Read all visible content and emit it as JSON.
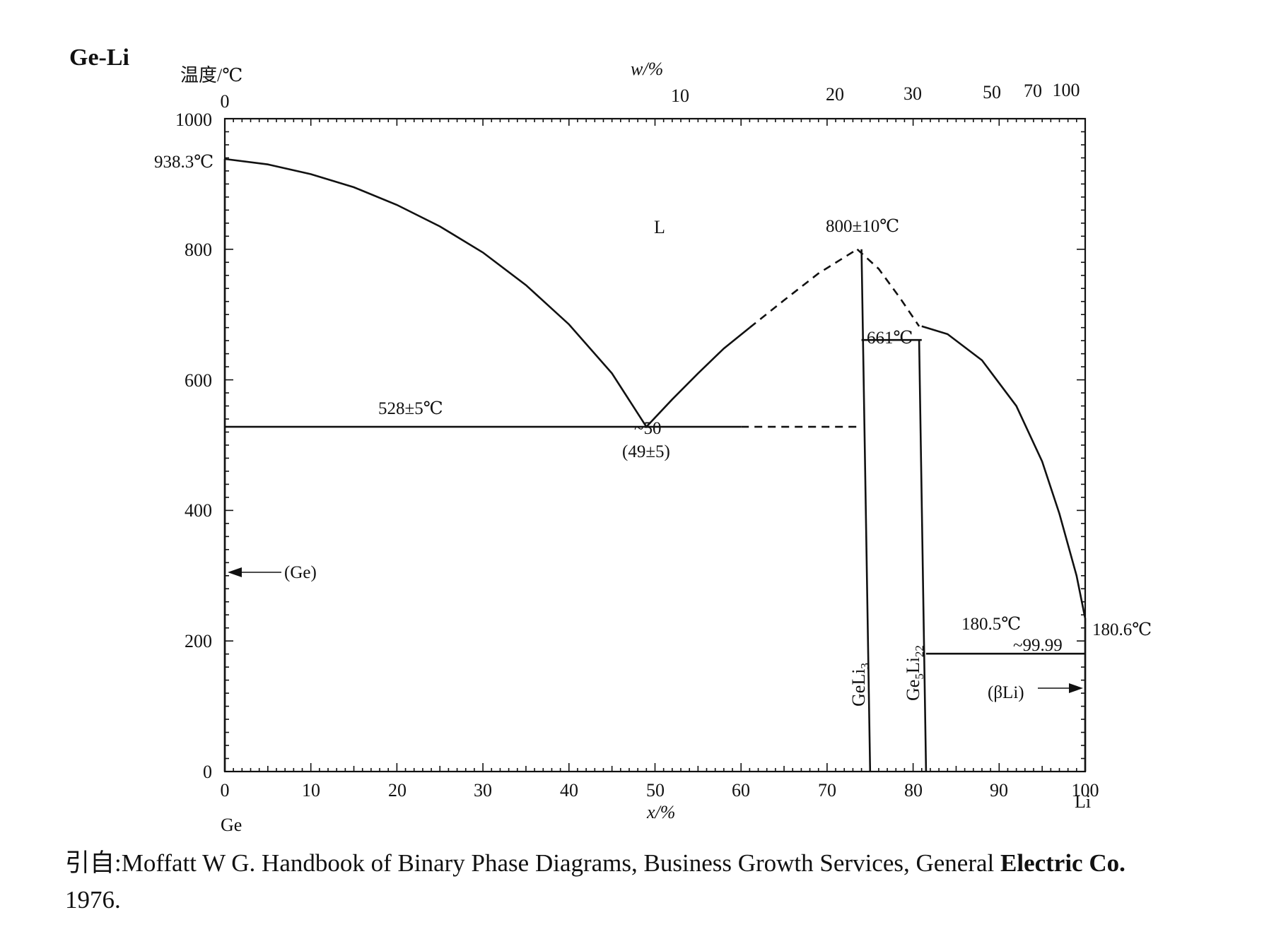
{
  "chart_data": {
    "type": "line",
    "title": "Ge-Li",
    "ylabel": "温度/℃",
    "xlabel": "x/%",
    "top_axis_label": "w/%",
    "left_element": "Ge",
    "right_element": "Li",
    "ylim": [
      0,
      1000
    ],
    "xlim": [
      0,
      100
    ],
    "y_ticks": [
      "0",
      "200",
      "400",
      "600",
      "800",
      "1000"
    ],
    "x_ticks": [
      "0",
      "10",
      "20",
      "30",
      "40",
      "50",
      "60",
      "70",
      "80",
      "90",
      "100"
    ],
    "top_ticks": [
      "0",
      "10",
      "20",
      "30",
      "50",
      "70",
      "100"
    ],
    "series": [
      {
        "name": "liquidus-ge",
        "style": "solid",
        "x": [
          0,
          5,
          10,
          15,
          20,
          25,
          30,
          35,
          40,
          45,
          49
        ],
        "y": [
          938.3,
          930,
          915,
          895,
          868,
          835,
          795,
          745,
          685,
          610,
          528
        ]
      },
      {
        "name": "liquidus-geli3",
        "style": "solid",
        "x": [
          49,
          52,
          55,
          58,
          61
        ],
        "y": [
          528,
          570,
          610,
          648,
          680
        ]
      },
      {
        "name": "liquidus-geli3-dashed",
        "style": "dashed",
        "x": [
          61,
          65,
          69,
          73.5
        ],
        "y": [
          680,
          722,
          763,
          800
        ]
      },
      {
        "name": "liquidus-ge5li22-dashed",
        "style": "dashed",
        "x": [
          73.5,
          76,
          78.5,
          80.7
        ],
        "y": [
          800,
          770,
          725,
          682
        ]
      },
      {
        "name": "liquidus-li",
        "style": "solid",
        "x": [
          81,
          84,
          88,
          92,
          95,
          97,
          99,
          99.99
        ],
        "y": [
          682,
          670,
          630,
          560,
          475,
          395,
          300,
          235
        ]
      },
      {
        "name": "eutectic-528",
        "style": "solid",
        "x": [
          0,
          60
        ],
        "y": [
          528,
          528
        ]
      },
      {
        "name": "eutectic-528-dashed",
        "style": "dashed",
        "x": [
          60,
          74
        ],
        "y": [
          528,
          528
        ]
      },
      {
        "name": "peritectic-661",
        "style": "solid",
        "x": [
          74,
          81
        ],
        "y": [
          661,
          661
        ]
      },
      {
        "name": "eutectic-180",
        "style": "solid",
        "x": [
          81.5,
          100
        ],
        "y": [
          180.5,
          180.5
        ]
      },
      {
        "name": "GeLi3-line",
        "style": "solid",
        "x": [
          74,
          75
        ],
        "y": [
          800,
          0
        ]
      },
      {
        "name": "Ge5Li22-line",
        "style": "solid",
        "x": [
          80.7,
          81.5
        ],
        "y": [
          661,
          0
        ]
      },
      {
        "name": "Ge-solid",
        "style": "solid",
        "x": [
          0,
          0
        ],
        "y": [
          938.3,
          0
        ]
      },
      {
        "name": "Li-solid",
        "style": "solid",
        "x": [
          100,
          100
        ],
        "y": [
          235,
          0
        ]
      }
    ],
    "annotations": [
      {
        "text": "938.3℃"
      },
      {
        "text": "L"
      },
      {
        "text": "800±10℃"
      },
      {
        "text": "661℃"
      },
      {
        "text": "528±5℃"
      },
      {
        "text": "~50"
      },
      {
        "text": "(49±5)"
      },
      {
        "text": "(Ge)"
      },
      {
        "text": "180.5℃"
      },
      {
        "text": "180.6℃"
      },
      {
        "text": "~99.99"
      },
      {
        "text": "(βLi)"
      },
      {
        "text": "GeLi",
        "sub": "3"
      },
      {
        "text": "Ge",
        "sub": "5",
        "text2": "Li",
        "sub2": "22"
      }
    ]
  },
  "source": {
    "line1_prefix": "引自:",
    "line1_text": "Moffatt W G. Handbook of Binary Phase Diagrams, Business Growth Services, General ",
    "line1_bold": "Electric Co.",
    "line2": "1976."
  }
}
